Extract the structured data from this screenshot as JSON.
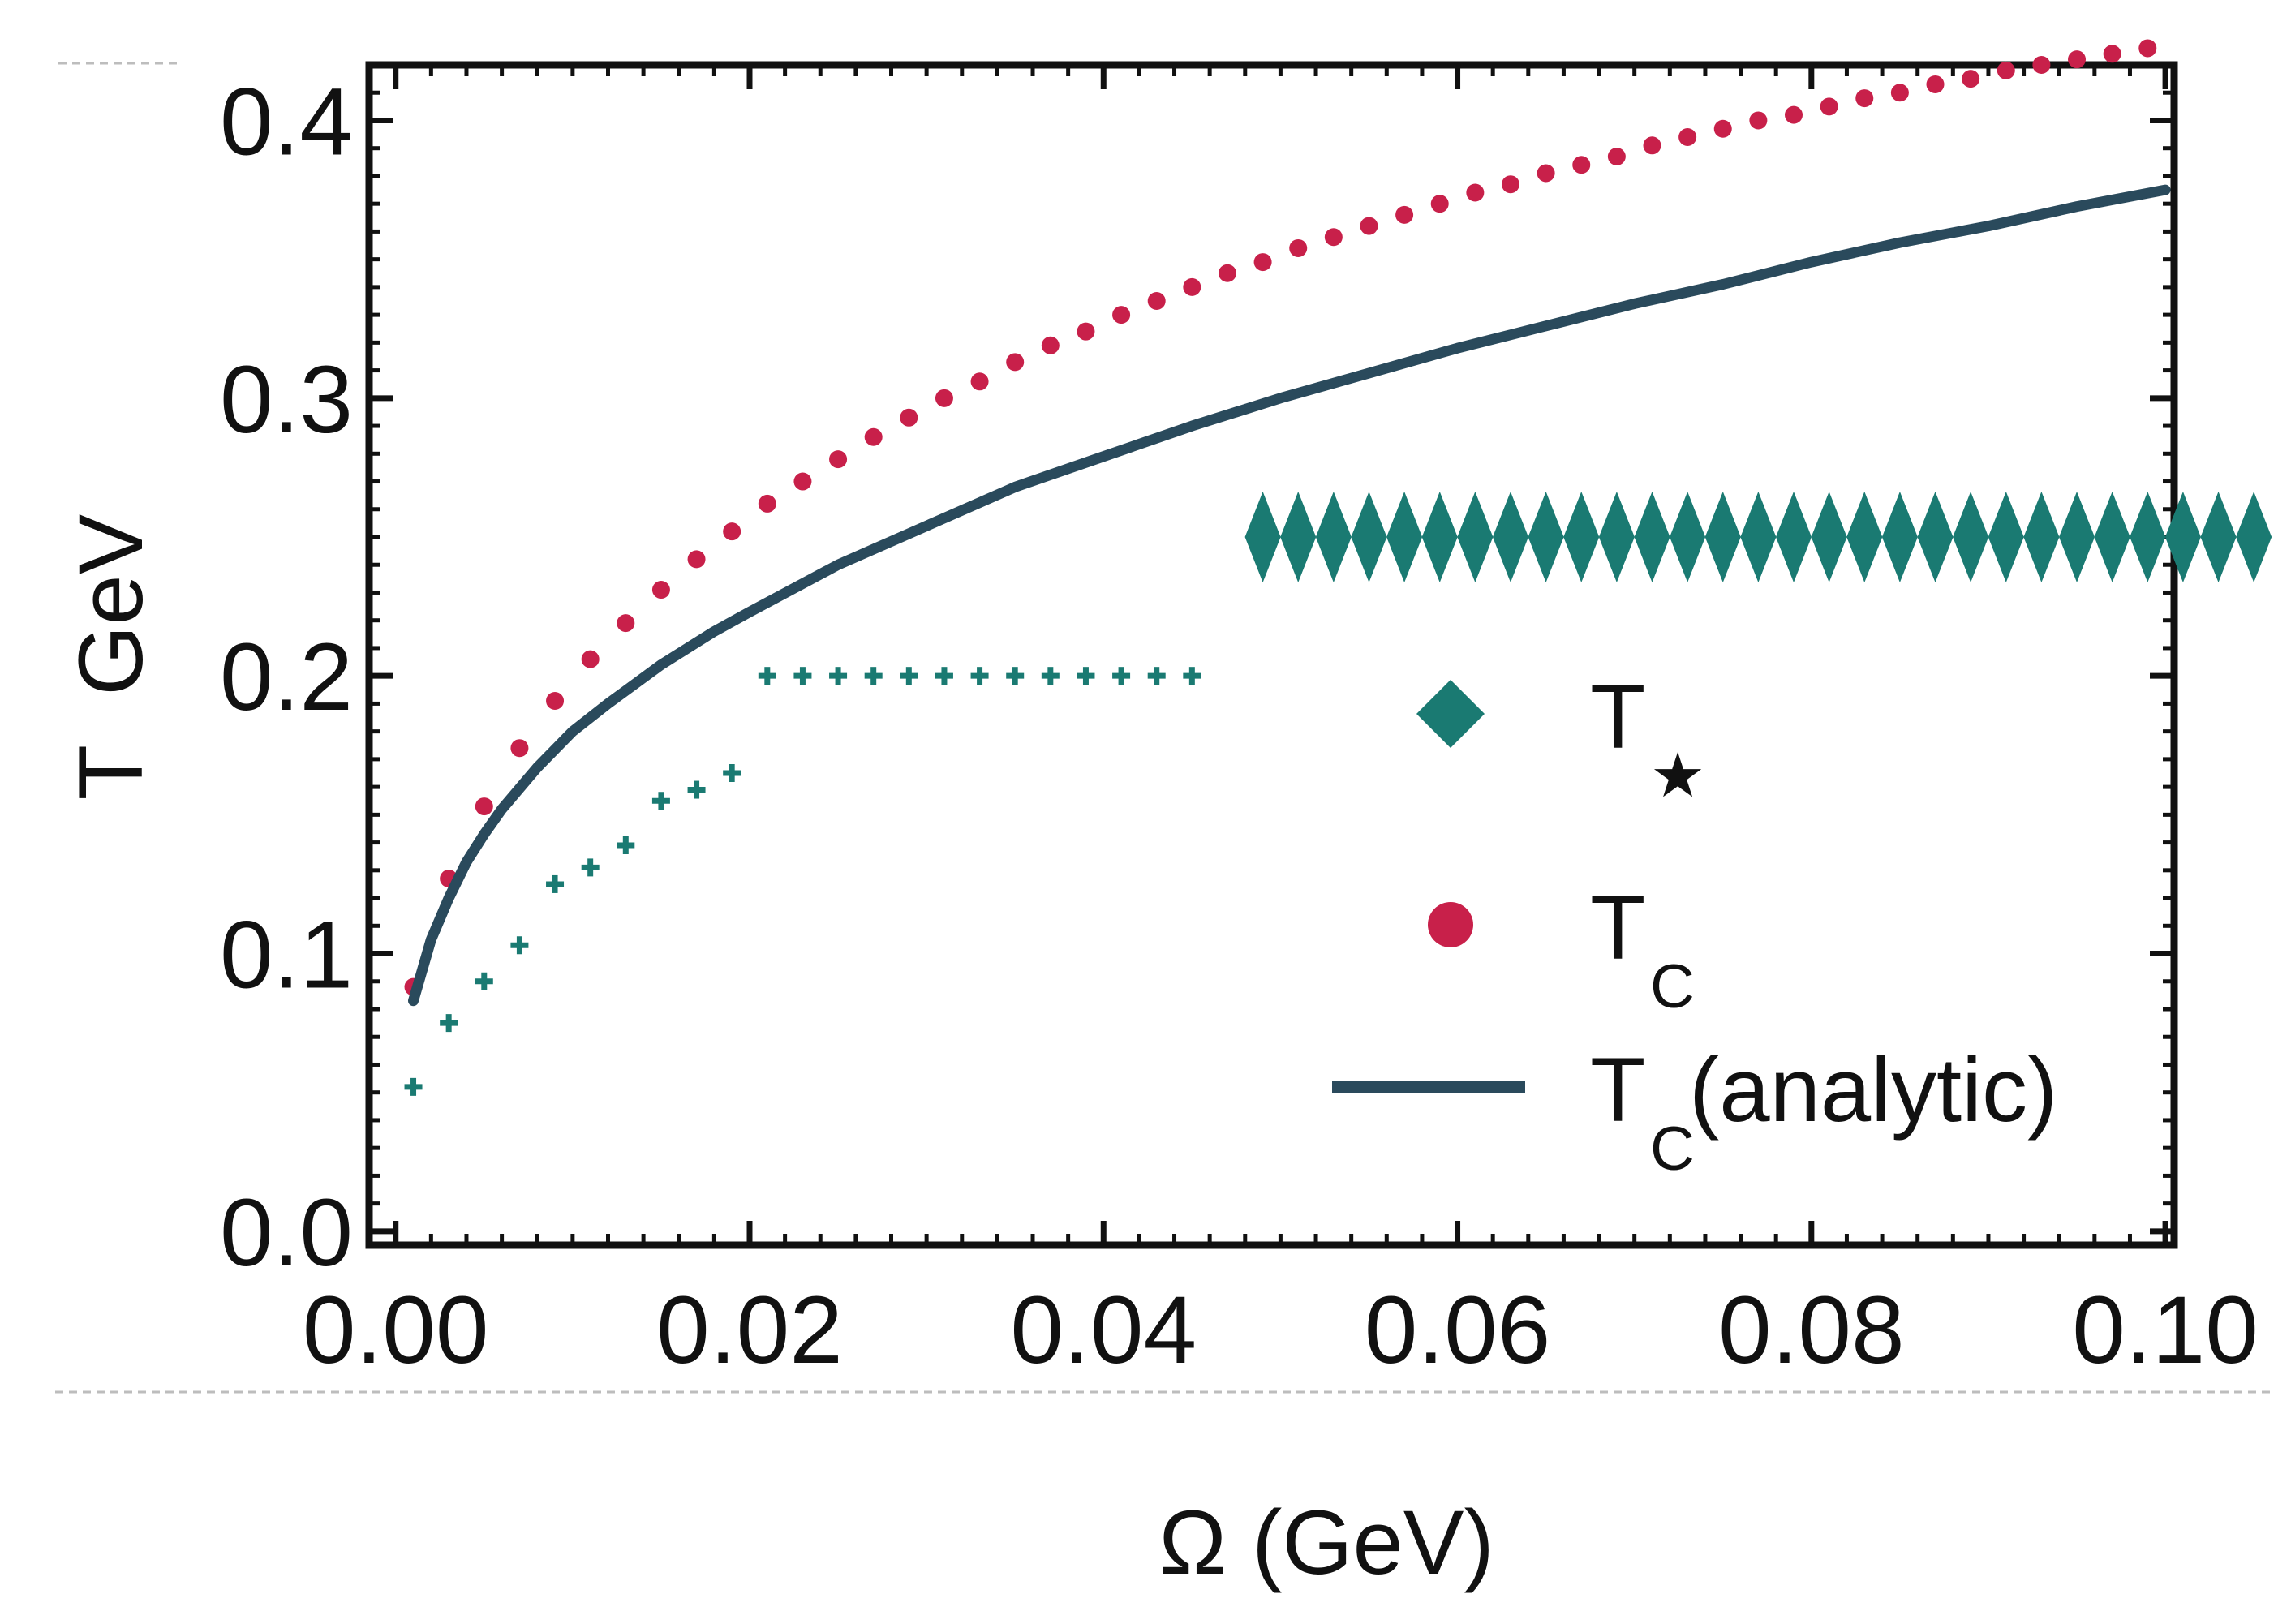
{
  "chart_data": {
    "type": "scatter",
    "xlabel": "Ω (GeV)",
    "ylabel": "T  GeV",
    "xlim": [
      -0.0015,
      0.1005
    ],
    "ylim": [
      -0.005,
      0.42
    ],
    "xticks": [
      "0.00",
      "0.02",
      "0.04",
      "0.06",
      "0.08",
      "0.10"
    ],
    "xtick_values": [
      0.0,
      0.02,
      0.04,
      0.06,
      0.08,
      0.1
    ],
    "yticks": [
      "0.0",
      "0.1",
      "0.2",
      "0.3",
      "0.4"
    ],
    "ytick_values": [
      0.0,
      0.1,
      0.2,
      0.3,
      0.4
    ],
    "grid": false,
    "legend_position": "middle-right",
    "colors": {
      "t_star": "#1a7a72",
      "t_c": "#c8204a",
      "t_c_analytic": "#2a4a5c",
      "frame": "#111111"
    },
    "legend": [
      {
        "key": "t_star",
        "label_main": "T",
        "label_sub": "★",
        "label_rest": "",
        "marker": "diamond"
      },
      {
        "key": "t_c",
        "label_main": "T",
        "label_sub": "C",
        "label_rest": "",
        "marker": "circle"
      },
      {
        "key": "t_c_analytic",
        "label_main": "T",
        "label_sub": "C",
        "label_rest": " (analytic)",
        "marker": "line"
      }
    ],
    "series": [
      {
        "key": "t_c",
        "name": "T_C",
        "marker": "circle",
        "x": [
          0.001,
          0.003,
          0.005,
          0.007,
          0.009,
          0.011,
          0.013,
          0.015,
          0.017,
          0.019,
          0.021,
          0.023,
          0.025,
          0.027,
          0.029,
          0.031,
          0.033,
          0.035,
          0.037,
          0.039,
          0.041,
          0.043,
          0.045,
          0.047,
          0.049,
          0.051,
          0.053,
          0.055,
          0.057,
          0.059,
          0.061,
          0.063,
          0.065,
          0.067,
          0.069,
          0.071,
          0.073,
          0.075,
          0.077,
          0.079,
          0.081,
          0.083,
          0.085,
          0.087,
          0.089,
          0.091,
          0.093,
          0.095,
          0.097,
          0.099
        ],
        "y": [
          0.088,
          0.127,
          0.153,
          0.174,
          0.191,
          0.206,
          0.219,
          0.231,
          0.242,
          0.252,
          0.262,
          0.27,
          0.278,
          0.286,
          0.293,
          0.3,
          0.306,
          0.313,
          0.319,
          0.324,
          0.33,
          0.335,
          0.34,
          0.345,
          0.349,
          0.354,
          0.358,
          0.362,
          0.366,
          0.37,
          0.374,
          0.377,
          0.381,
          0.384,
          0.387,
          0.391,
          0.394,
          0.397,
          0.4,
          0.402,
          0.405,
          0.408,
          0.41,
          0.413,
          0.415,
          0.418,
          0.42,
          0.422,
          0.424,
          0.426
        ]
      },
      {
        "key": "t_c_analytic",
        "name": "T_C (analytic)",
        "marker": "line",
        "x": [
          0.001,
          0.002,
          0.003,
          0.004,
          0.005,
          0.006,
          0.008,
          0.01,
          0.012,
          0.015,
          0.018,
          0.02,
          0.025,
          0.03,
          0.035,
          0.04,
          0.045,
          0.05,
          0.055,
          0.06,
          0.065,
          0.07,
          0.075,
          0.08,
          0.085,
          0.09,
          0.095,
          0.1
        ],
        "y": [
          0.083,
          0.105,
          0.12,
          0.133,
          0.143,
          0.152,
          0.167,
          0.18,
          0.19,
          0.204,
          0.216,
          0.223,
          0.24,
          0.254,
          0.268,
          0.279,
          0.29,
          0.3,
          0.309,
          0.318,
          0.326,
          0.334,
          0.341,
          0.349,
          0.356,
          0.362,
          0.369,
          0.375
        ]
      },
      {
        "key": "t_star",
        "name": "T_★",
        "marker": "cross",
        "x": [
          0.001,
          0.003,
          0.005,
          0.007,
          0.009,
          0.011,
          0.013,
          0.015,
          0.017,
          0.019,
          0.021,
          0.023,
          0.025,
          0.027,
          0.029,
          0.031,
          0.033,
          0.035,
          0.037,
          0.039,
          0.041,
          0.043,
          0.045
        ],
        "y": [
          0.052,
          0.075,
          0.09,
          0.103,
          0.125,
          0.131,
          0.139,
          0.155,
          0.159,
          0.165,
          0.2,
          0.2,
          0.2,
          0.2,
          0.2,
          0.2,
          0.2,
          0.2,
          0.2,
          0.2,
          0.2,
          0.2,
          0.2
        ]
      },
      {
        "key": "t_star",
        "name": "T_★",
        "marker": "diamond",
        "x": [
          0.049,
          0.051,
          0.053,
          0.055,
          0.057,
          0.059,
          0.061,
          0.063,
          0.065,
          0.067,
          0.069,
          0.071,
          0.073,
          0.075,
          0.077,
          0.079,
          0.081,
          0.083,
          0.085,
          0.087,
          0.089,
          0.091,
          0.093,
          0.095,
          0.097,
          0.099,
          0.101,
          0.103,
          0.105
        ],
        "y": [
          0.25,
          0.25,
          0.25,
          0.25,
          0.25,
          0.25,
          0.25,
          0.25,
          0.25,
          0.25,
          0.25,
          0.25,
          0.25,
          0.25,
          0.25,
          0.25,
          0.25,
          0.25,
          0.25,
          0.25,
          0.25,
          0.25,
          0.25,
          0.25,
          0.25,
          0.25,
          0.25,
          0.25,
          0.25
        ]
      }
    ]
  }
}
